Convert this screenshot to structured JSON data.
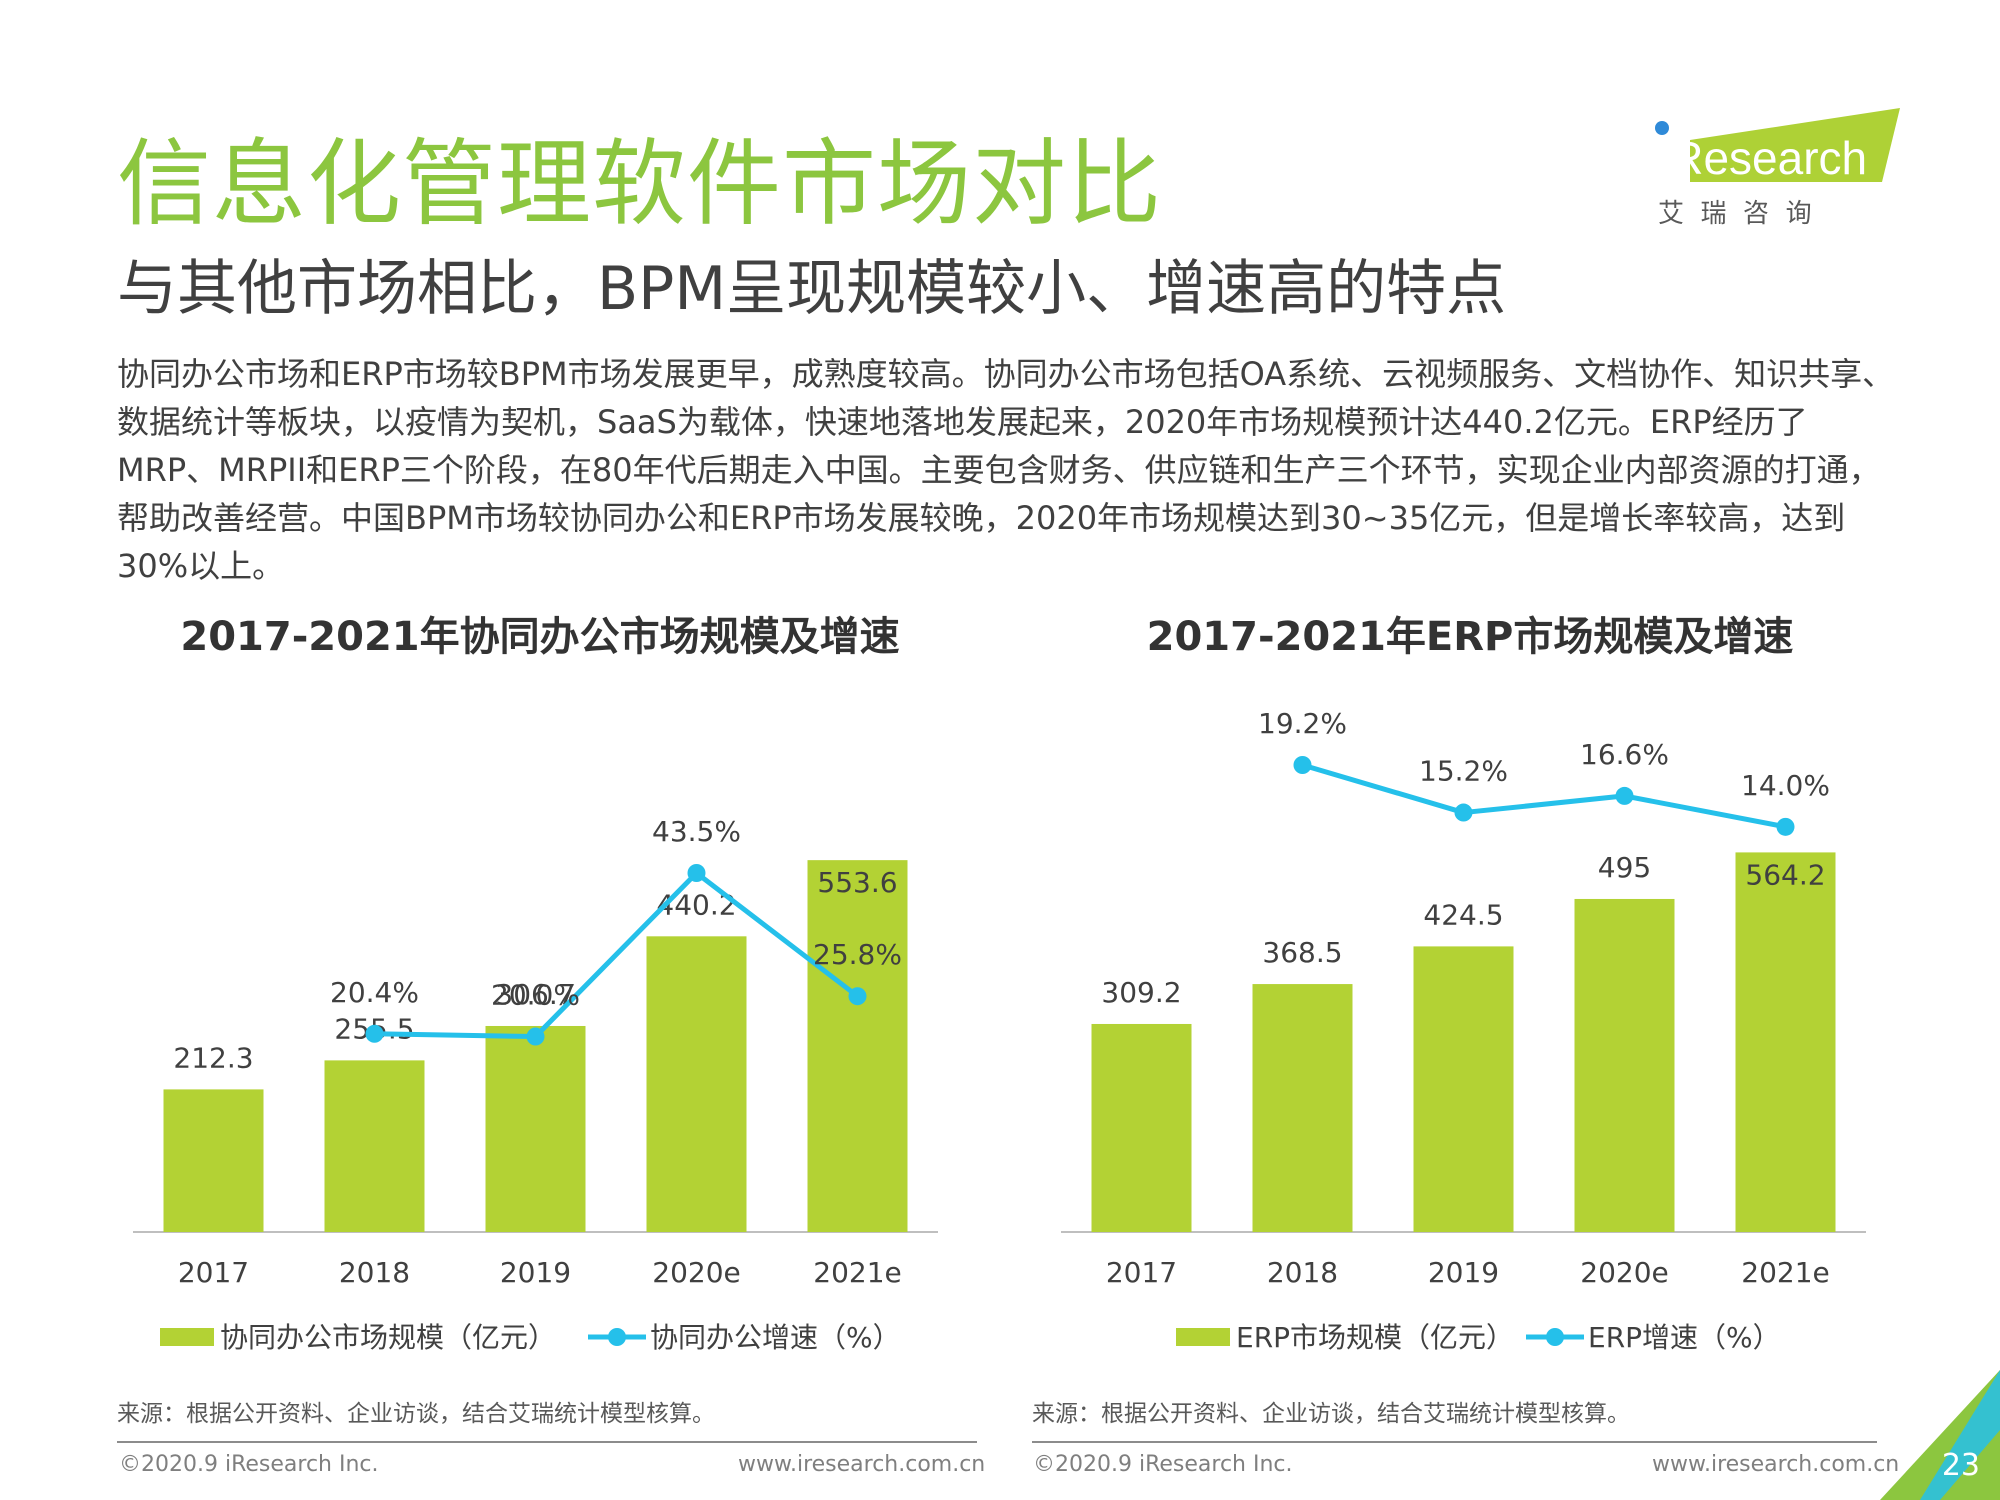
{
  "page": {
    "title": "信息化管理软件市场对比",
    "subtitle": "与其他市场相比，BPM呈现规模较小、增速高的特点",
    "body": "协同办公市场和ERP市场较BPM市场发展更早，成熟度较高。协同办公市场包括OA系统、云视频服务、文档协作、知识共享、数据统计等板块，以疫情为契机，SaaS为载体，快速地落地发展起来，2020年市场规模预计达440.2亿元。ERP经历了MRP、MRPII和ERP三个阶段，在80年代后期走入中国。主要包含财务、供应链和生产三个环节，实现企业内部资源的打通，帮助改善经营。中国BPM市场较协同办公和ERP市场发展较晚，2020年市场规模达到30~35亿元，但是增长率较高，达到30%以上。",
    "logo_text": "iResearch",
    "logo_cn": "艾  瑞  咨  询",
    "source_left": "来源：根据公开资料、企业访谈，结合艾瑞统计模型核算。",
    "source_right": "来源：根据公开资料、企业访谈，结合艾瑞统计模型核算。",
    "footer_left_a": "©2020.9 iResearch Inc.",
    "footer_left_b": "www.iresearch.com.cn",
    "footer_right_a": "©2020.9 iResearch Inc.",
    "footer_right_b": "www.iresearch.com.cn",
    "page_number": "23",
    "colors": {
      "brand_green": "#8cc63f",
      "bar_green": "#b3d234",
      "line_blue": "#25c0ea",
      "logo_bg": "#aed136"
    }
  },
  "chart_data": [
    {
      "type": "bar",
      "title": "2017-2021年协同办公市场规模及增速",
      "categories": [
        "2017",
        "2018",
        "2019",
        "2020e",
        "2021e"
      ],
      "series": [
        {
          "name": "协同办公市场规模（亿元）",
          "kind": "bar",
          "values": [
            212.3,
            255.5,
            306.7,
            440.2,
            553.6
          ],
          "labels": [
            "212.3",
            "255.5",
            "306.7",
            "440.2",
            "553.6"
          ]
        },
        {
          "name": "协同办公增速（%）",
          "kind": "line",
          "values": [
            null,
            20.4,
            20.0,
            43.5,
            25.8
          ],
          "labels": [
            "",
            "20.4%",
            "20.0%",
            "43.5%",
            "25.8%"
          ]
        }
      ],
      "legend_position": "bottom"
    },
    {
      "type": "bar",
      "title": "2017-2021年ERP市场规模及增速",
      "categories": [
        "2017",
        "2018",
        "2019",
        "2020e",
        "2021e"
      ],
      "series": [
        {
          "name": "ERP市场规模（亿元）",
          "kind": "bar",
          "values": [
            309.2,
            368.5,
            424.5,
            495,
            564.2
          ],
          "labels": [
            "309.2",
            "368.5",
            "424.5",
            "495",
            "564.2"
          ]
        },
        {
          "name": "ERP增速（%）",
          "kind": "line",
          "values": [
            null,
            19.2,
            15.2,
            16.6,
            14.0
          ],
          "labels": [
            "",
            "19.2%",
            "15.2%",
            "16.6%",
            "14.0%"
          ]
        }
      ],
      "legend_position": "bottom"
    }
  ]
}
